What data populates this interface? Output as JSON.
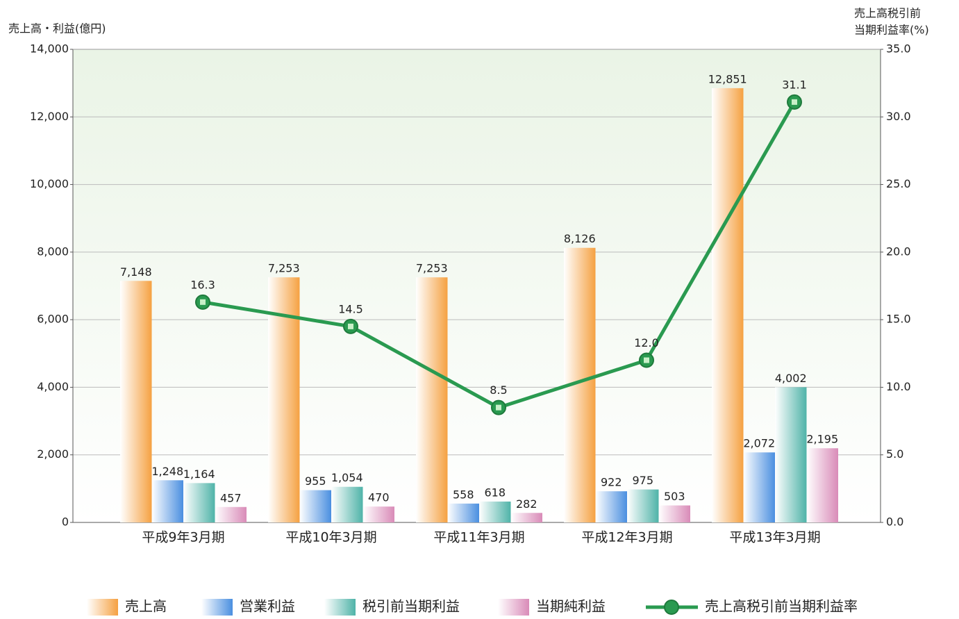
{
  "chart_data": {
    "type": "bar",
    "y_axis_label": "売上高・利益(億円)",
    "y2_axis_label": [
      "売上高税引前",
      "当期利益率(%)"
    ],
    "categories": [
      "平成9年3月期",
      "平成10年3月期",
      "平成11年3月期",
      "平成12年3月期",
      "平成13年3月期"
    ],
    "series": [
      {
        "name": "売上高",
        "color": "#f5a142",
        "values": [
          7148,
          7253,
          7253,
          8126,
          12851
        ],
        "value_labels": [
          "7,148",
          "7,253",
          "7,253",
          "8,126",
          "12,851"
        ]
      },
      {
        "name": "営業利益",
        "color": "#4a8fe0",
        "values": [
          1248,
          955,
          558,
          922,
          2072
        ],
        "value_labels": [
          "1,248",
          "955",
          "558",
          "922",
          "2,072"
        ]
      },
      {
        "name": "税引前当期利益",
        "color": "#4fb3a8",
        "values": [
          1164,
          1054,
          618,
          975,
          4002
        ],
        "value_labels": [
          "1,164",
          "1,054",
          "618",
          "975",
          "4,002"
        ]
      },
      {
        "name": "当期純利益",
        "color": "#d98bb8",
        "values": [
          457,
          470,
          282,
          503,
          2195
        ],
        "value_labels": [
          "457",
          "470",
          "282",
          "503",
          "2,195"
        ]
      },
      {
        "name": "売上高税引前当期利益率",
        "color": "#2a9a50",
        "type": "line",
        "axis": "y2",
        "values": [
          16.3,
          14.5,
          8.5,
          12.0,
          31.1
        ],
        "value_labels": [
          "16.3",
          "14.5",
          "8.5",
          "12.0",
          "31.1"
        ]
      }
    ],
    "ylim": [
      0,
      14000
    ],
    "yticks": [
      0,
      {
        "value": 2000,
        "label": "2,000"
      },
      {
        "value": 4000,
        "label": "4,000"
      },
      {
        "value": 6000,
        "label": "6,000"
      },
      {
        "value": 8000,
        "label": "8,000"
      },
      {
        "value": 10000,
        "label": "10,000"
      },
      {
        "value": 12000,
        "label": "12,000"
      },
      {
        "value": 14000,
        "label": "14,000"
      }
    ],
    "y2lim": [
      0,
      35
    ],
    "y2ticks": [
      {
        "value": 0,
        "label": "0.0"
      },
      {
        "value": 5,
        "label": "5.0"
      },
      {
        "value": 10,
        "label": "10.0"
      },
      {
        "value": 15,
        "label": "15.0"
      },
      {
        "value": 20,
        "label": "20.0"
      },
      {
        "value": 25,
        "label": "25.0"
      },
      {
        "value": 30,
        "label": "30.0"
      },
      {
        "value": 35,
        "label": "35.0"
      }
    ],
    "grid": true
  }
}
